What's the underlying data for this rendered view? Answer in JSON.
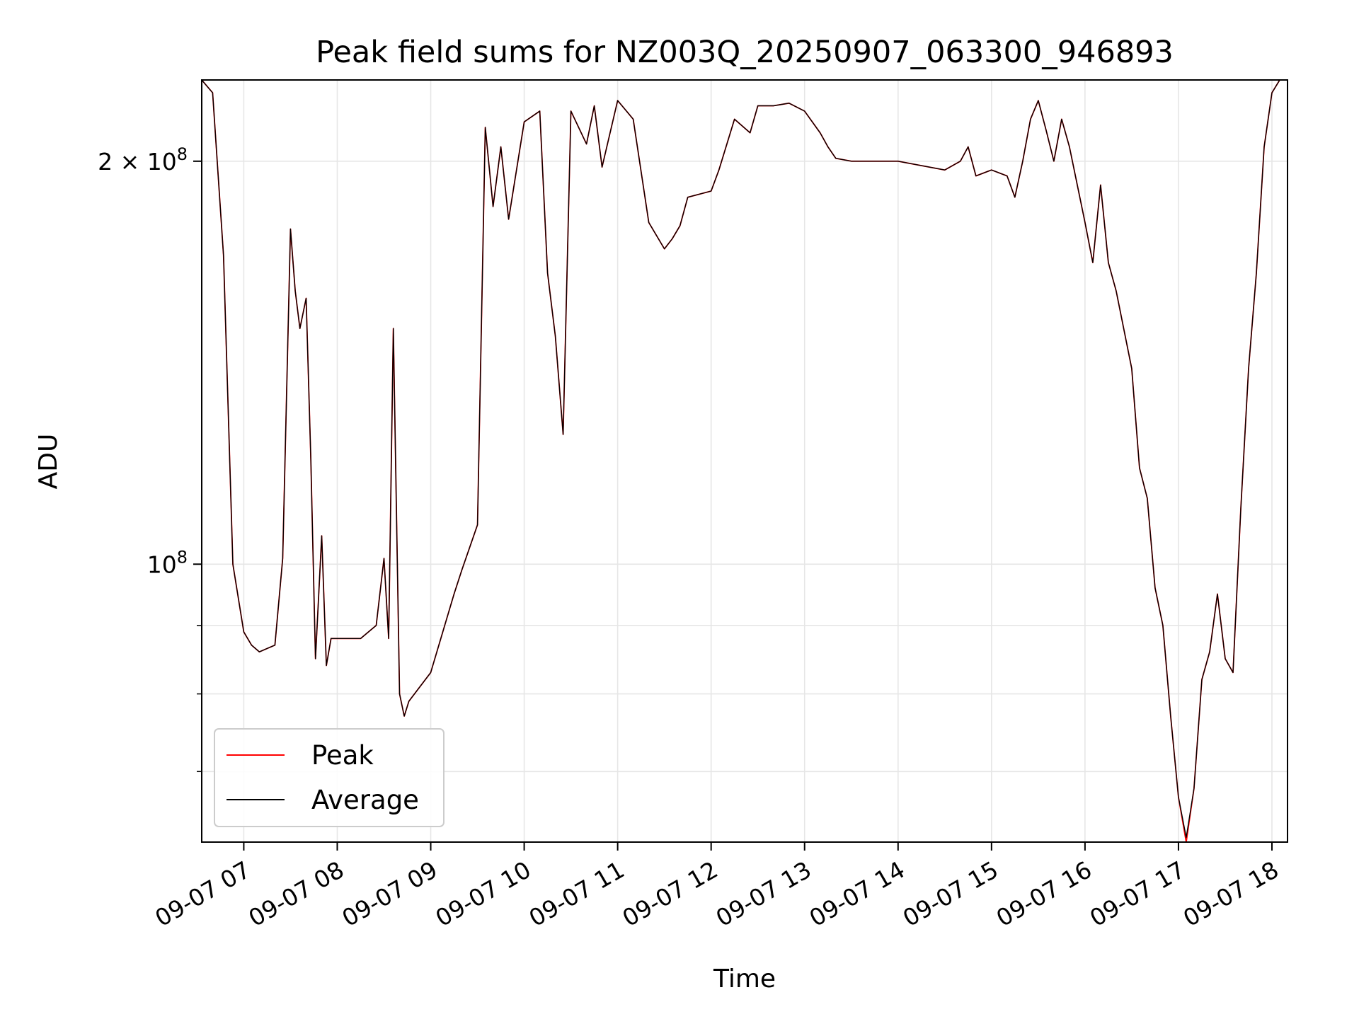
{
  "chart_data": {
    "type": "line",
    "title": "Peak field sums for NZ003Q_20250907_063300_946893",
    "xlabel": "Time",
    "ylabel": "ADU",
    "yscale": "log",
    "xlim": [
      "09-07 06:33",
      "09-07 18:10"
    ],
    "ylim": [
      62000000,
      230000000
    ],
    "grid": true,
    "legend": {
      "position": "lower-left",
      "entries": [
        "Peak",
        "Average"
      ]
    },
    "xticks": [
      "09-07 07",
      "09-07 08",
      "09-07 09",
      "09-07 10",
      "09-07 11",
      "09-07 12",
      "09-07 13",
      "09-07 14",
      "09-07 15",
      "09-07 16",
      "09-07 17",
      "09-07 18"
    ],
    "yticks_major": [
      {
        "value": 100000000,
        "label_base": "10",
        "label_exp": "8"
      },
      {
        "value": 200000000,
        "label_coef": "2",
        "label_base": "10",
        "label_exp": "8"
      }
    ],
    "yticks_minor": [
      70000000,
      80000000,
      90000000
    ],
    "x": [
      "09-07 06:33",
      "09-07 06:40",
      "09-07 06:47",
      "09-07 06:53",
      "09-07 07:00",
      "09-07 07:05",
      "09-07 07:10",
      "09-07 07:15",
      "09-07 07:20",
      "09-07 07:25",
      "09-07 07:30",
      "09-07 07:33",
      "09-07 07:36",
      "09-07 07:40",
      "09-07 07:43",
      "09-07 07:46",
      "09-07 07:50",
      "09-07 07:53",
      "09-07 07:56",
      "09-07 08:00",
      "09-07 08:05",
      "09-07 08:15",
      "09-07 08:25",
      "09-07 08:30",
      "09-07 08:33",
      "09-07 08:36",
      "09-07 08:40",
      "09-07 08:43",
      "09-07 08:46",
      "09-07 09:00",
      "09-07 09:15",
      "09-07 09:20",
      "09-07 09:30",
      "09-07 09:35",
      "09-07 09:40",
      "09-07 09:45",
      "09-07 09:50",
      "09-07 10:00",
      "09-07 10:10",
      "09-07 10:15",
      "09-07 10:20",
      "09-07 10:25",
      "09-07 10:30",
      "09-07 10:40",
      "09-07 10:45",
      "09-07 10:50",
      "09-07 11:00",
      "09-07 11:10",
      "09-07 11:20",
      "09-07 11:30",
      "09-07 11:35",
      "09-07 11:40",
      "09-07 11:45",
      "09-07 12:00",
      "09-07 12:05",
      "09-07 12:15",
      "09-07 12:25",
      "09-07 12:30",
      "09-07 12:40",
      "09-07 12:50",
      "09-07 13:00",
      "09-07 13:10",
      "09-07 13:15",
      "09-07 13:20",
      "09-07 13:30",
      "09-07 14:00",
      "09-07 14:30",
      "09-07 14:40",
      "09-07 14:45",
      "09-07 14:50",
      "09-07 15:00",
      "09-07 15:10",
      "09-07 15:15",
      "09-07 15:20",
      "09-07 15:25",
      "09-07 15:30",
      "09-07 15:35",
      "09-07 15:40",
      "09-07 15:45",
      "09-07 15:50",
      "09-07 16:00",
      "09-07 16:05",
      "09-07 16:10",
      "09-07 16:15",
      "09-07 16:20",
      "09-07 16:30",
      "09-07 16:35",
      "09-07 16:40",
      "09-07 16:45",
      "09-07 16:50",
      "09-07 16:55",
      "09-07 17:00",
      "09-07 17:05",
      "09-07 17:10",
      "09-07 17:15",
      "09-07 17:20",
      "09-07 17:25",
      "09-07 17:30",
      "09-07 17:35",
      "09-07 17:40",
      "09-07 17:45",
      "09-07 17:50",
      "09-07 17:55",
      "09-07 18:00",
      "09-07 18:05",
      "09-07 18:10"
    ],
    "series": [
      {
        "name": "Peak",
        "color": "#ff0000",
        "values": [
          230000000,
          225000000,
          170000000,
          100000000,
          89000000,
          87000000,
          86000000,
          86500000,
          87000000,
          101000000,
          178000000,
          160000000,
          150000000,
          158000000,
          120000000,
          85000000,
          105000000,
          84000000,
          88000000,
          88000000,
          88000000,
          88000000,
          90000000,
          101000000,
          88000000,
          150000000,
          80000000,
          77000000,
          79000000,
          83000000,
          95000000,
          99000000,
          107000000,
          212000000,
          185000000,
          205000000,
          181000000,
          214000000,
          218000000,
          165000000,
          148000000,
          125000000,
          218000000,
          206000000,
          220000000,
          198000000,
          222000000,
          215000000,
          180000000,
          172000000,
          175000000,
          179000000,
          188000000,
          190000000,
          197000000,
          215000000,
          210000000,
          220000000,
          220000000,
          221000000,
          218000000,
          210000000,
          205000000,
          201000000,
          200000000,
          200000000,
          197000000,
          200000000,
          205000000,
          195000000,
          197000000,
          195000000,
          188000000,
          200000000,
          215000000,
          222000000,
          211000000,
          200000000,
          215000000,
          205000000,
          180000000,
          168000000,
          192000000,
          168000000,
          160000000,
          140000000,
          118000000,
          112000000,
          96000000,
          90000000,
          77000000,
          67000000,
          62000000,
          68000000,
          82000000,
          86000000,
          95000000,
          85000000,
          83000000,
          110000000,
          140000000,
          165000000,
          205000000,
          225000000,
          230000000,
          230000000
        ]
      },
      {
        "name": "Average",
        "color": "#000000",
        "values": [
          230000000,
          225000000,
          170000000,
          100000000,
          89000000,
          87000000,
          86000000,
          86500000,
          87000000,
          101000000,
          178000000,
          160000000,
          150000000,
          158000000,
          120000000,
          85000000,
          105000000,
          84000000,
          88000000,
          88000000,
          88000000,
          88000000,
          90000000,
          101000000,
          88000000,
          150000000,
          80000000,
          77000000,
          79000000,
          83000000,
          95000000,
          99000000,
          107000000,
          212000000,
          185000000,
          205000000,
          181000000,
          214000000,
          218000000,
          165000000,
          148000000,
          125000000,
          218000000,
          206000000,
          220000000,
          198000000,
          222000000,
          215000000,
          180000000,
          172000000,
          175000000,
          179000000,
          188000000,
          190000000,
          197000000,
          215000000,
          210000000,
          220000000,
          220000000,
          221000000,
          218000000,
          210000000,
          205000000,
          201000000,
          200000000,
          200000000,
          197000000,
          200000000,
          205000000,
          195000000,
          197000000,
          195000000,
          188000000,
          200000000,
          215000000,
          222000000,
          211000000,
          200000000,
          215000000,
          205000000,
          180000000,
          168000000,
          192000000,
          168000000,
          160000000,
          140000000,
          118000000,
          112000000,
          96000000,
          90000000,
          77000000,
          67000000,
          62500000,
          68000000,
          82000000,
          86000000,
          95000000,
          85000000,
          83000000,
          110000000,
          140000000,
          165000000,
          205000000,
          225000000,
          230000000,
          230000000
        ]
      }
    ]
  }
}
